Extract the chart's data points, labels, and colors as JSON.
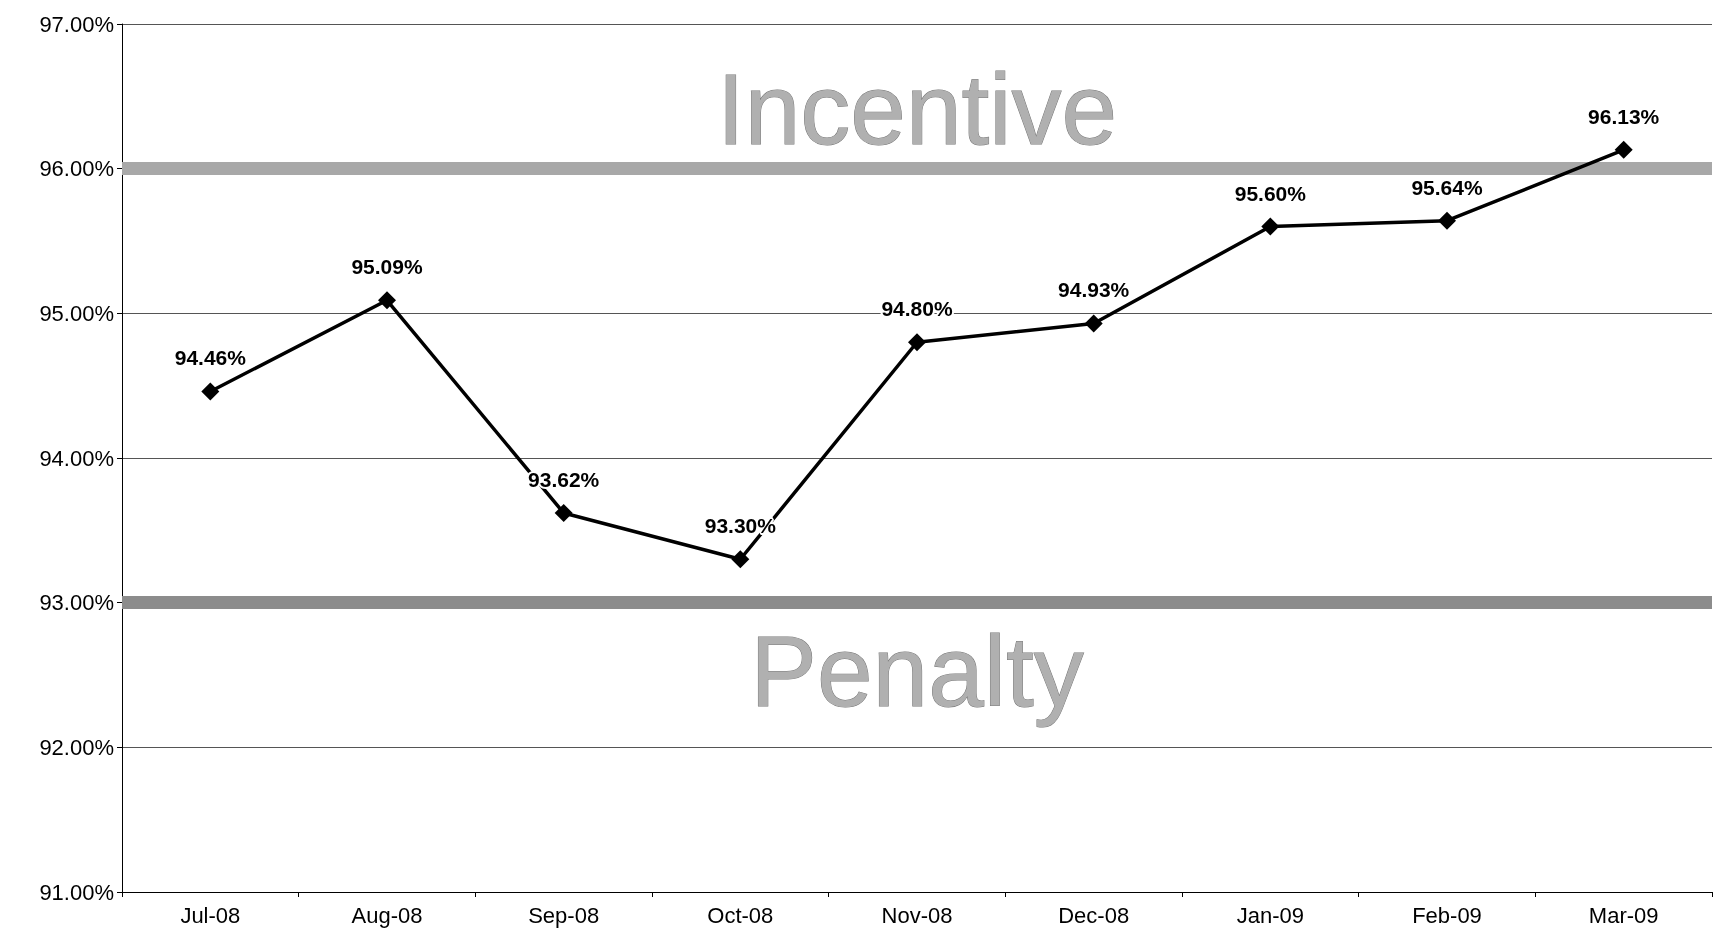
{
  "chart_data": {
    "type": "line",
    "categories": [
      "Jul-08",
      "Aug-08",
      "Sep-08",
      "Oct-08",
      "Nov-08",
      "Dec-08",
      "Jan-09",
      "Feb-09",
      "Mar-09"
    ],
    "series": [
      {
        "color": "#000000",
        "values": [
          94.46,
          95.09,
          93.62,
          93.3,
          94.8,
          94.93,
          95.6,
          95.64,
          96.13
        ],
        "value_labels": [
          "94.46%",
          "95.09%",
          "93.62%",
          "93.30%",
          "94.80%",
          "94.93%",
          "95.60%",
          "95.64%",
          "96.13%"
        ]
      }
    ],
    "ylim": [
      91,
      97
    ],
    "yticks": [
      {
        "value": 91,
        "label": "91.00%"
      },
      {
        "value": 92,
        "label": "92.00%"
      },
      {
        "value": 93,
        "label": "93.00%"
      },
      {
        "value": 94,
        "label": "94.00%"
      },
      {
        "value": 95,
        "label": "95.00%"
      },
      {
        "value": 96,
        "label": "96.00%"
      },
      {
        "value": 97,
        "label": "97.00%"
      }
    ],
    "ref_lines": [
      {
        "axis": "y",
        "value": 96,
        "label": "Incentive",
        "color": "#a8a8a8",
        "line_style": "solid"
      },
      {
        "axis": "y",
        "value": 93,
        "label": "Penalty",
        "color": "#8c8c8c",
        "line_style": "solid"
      }
    ],
    "grid": "y",
    "marker": "diamond",
    "line_style": "solid"
  }
}
